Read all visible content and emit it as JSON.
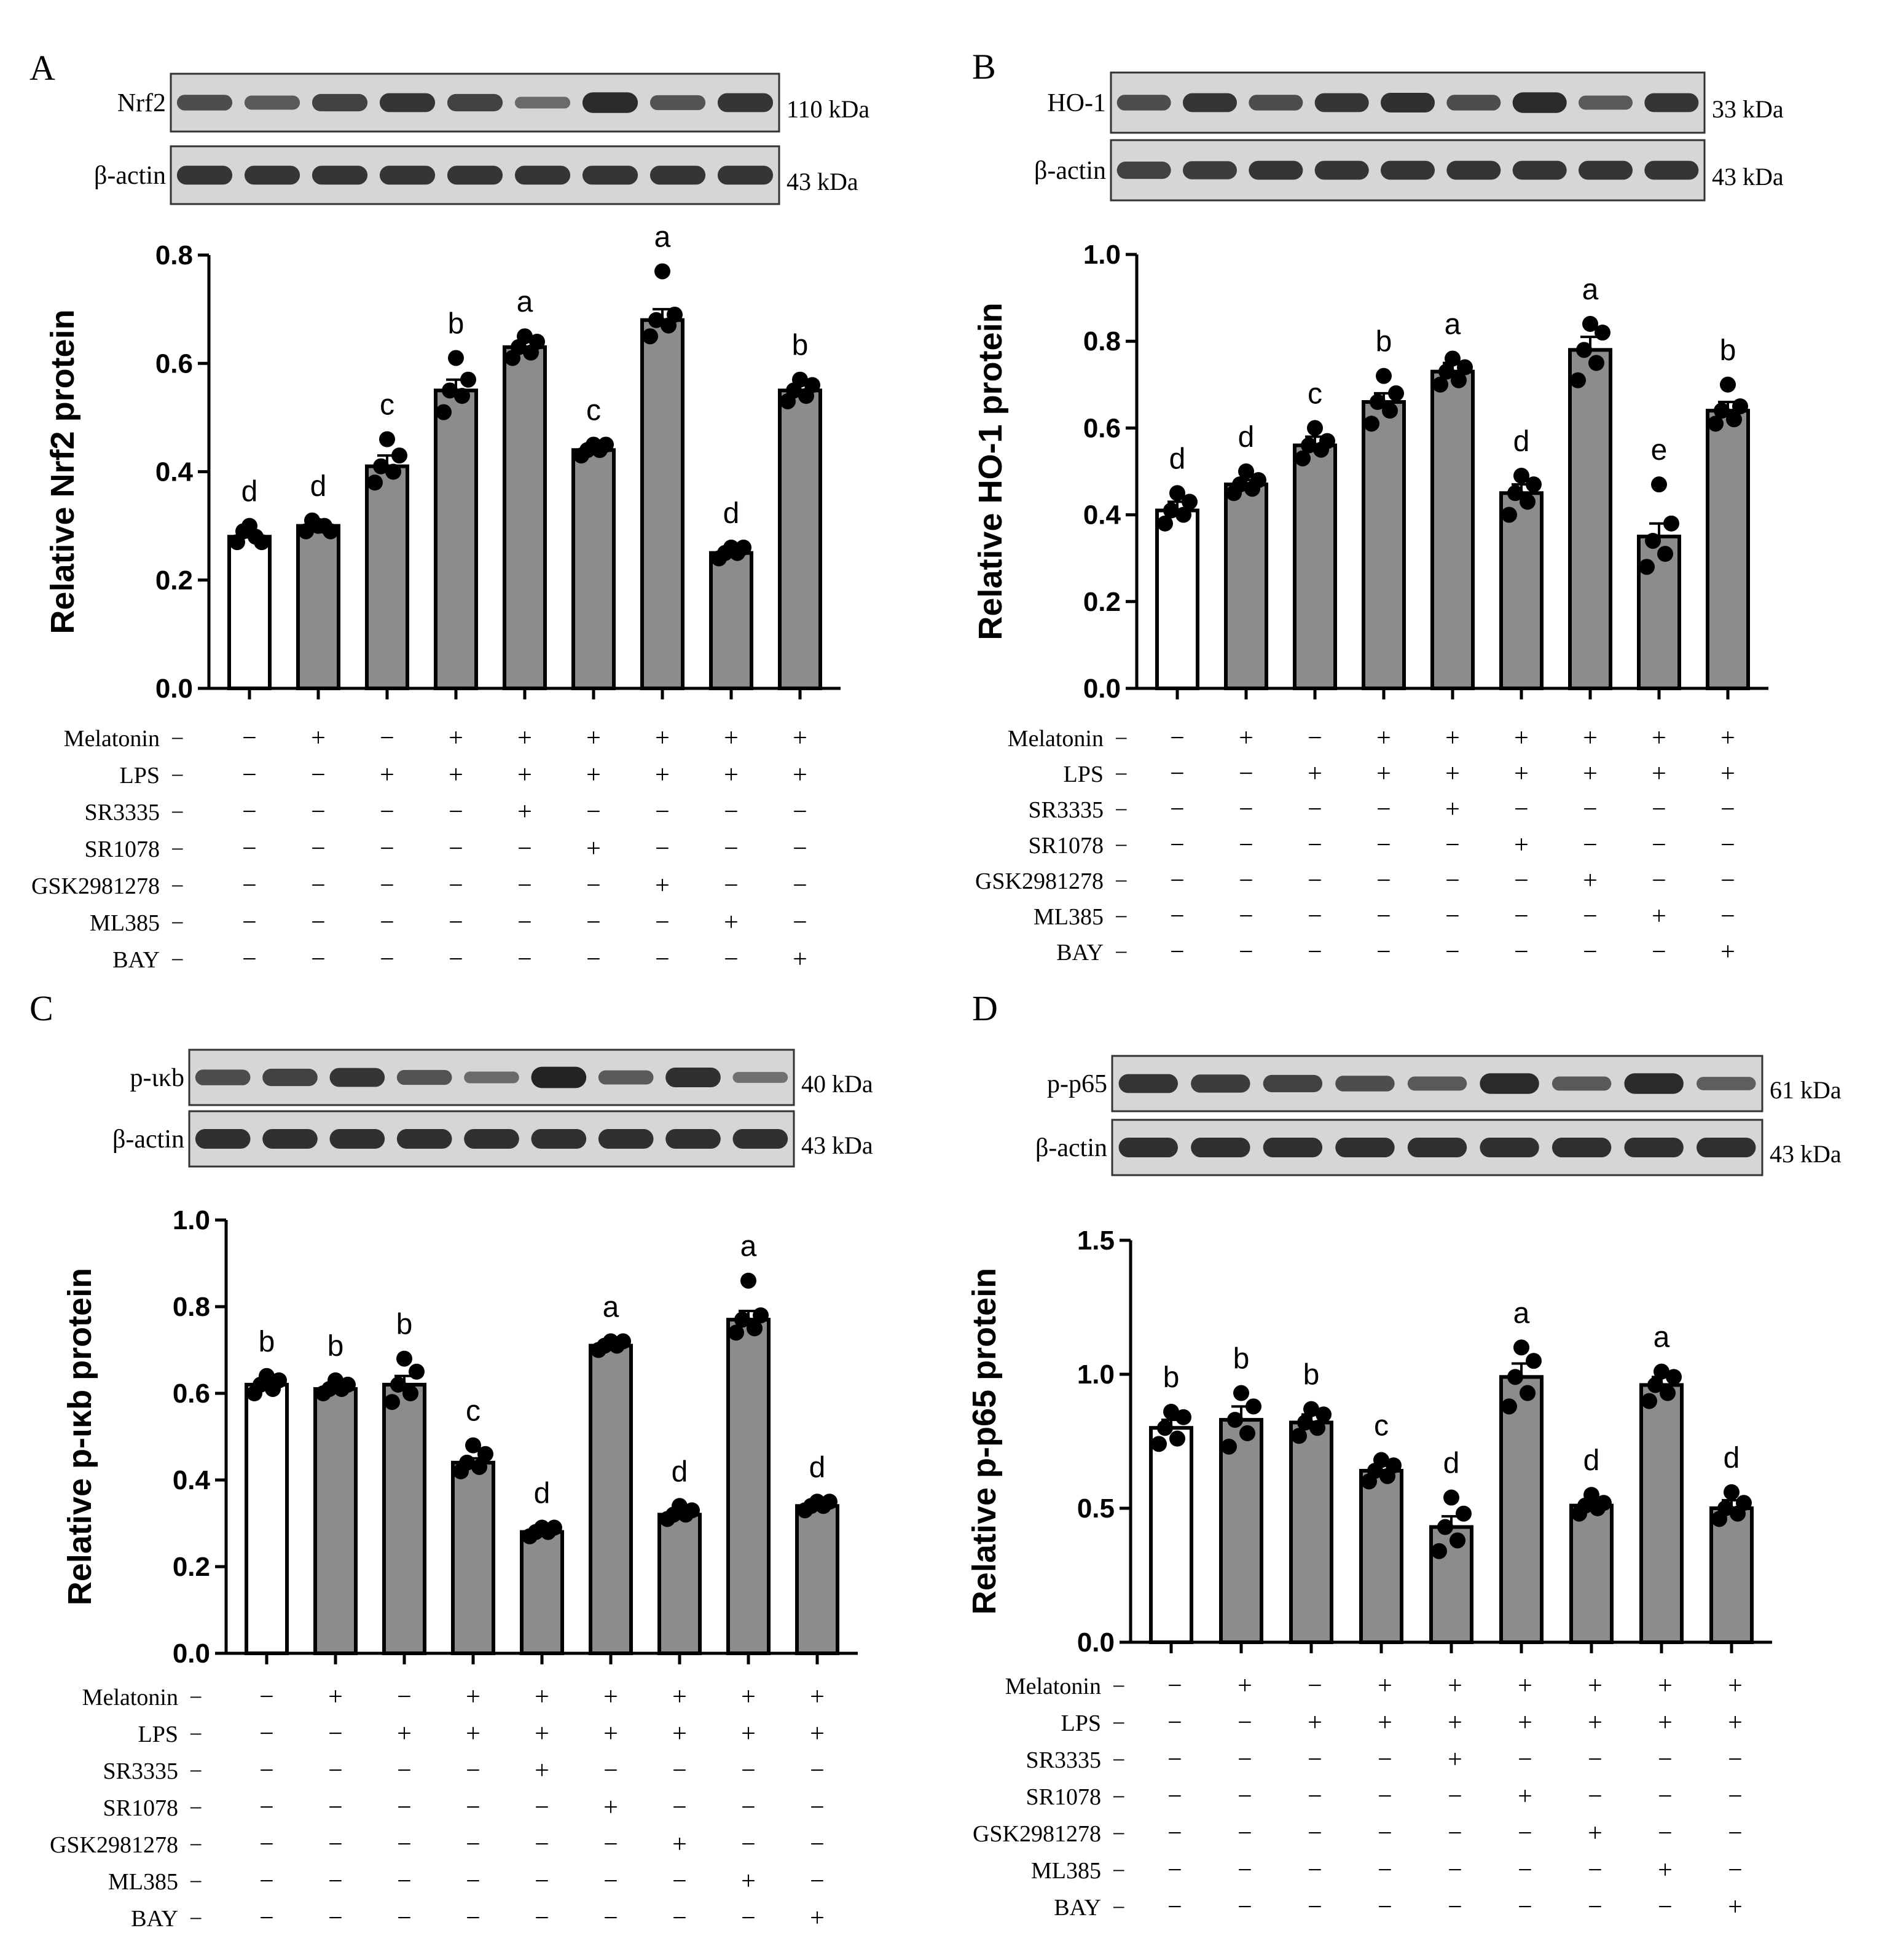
{
  "conditions": [
    "Melatonin",
    "LPS",
    "SR3335",
    "SR1078",
    "GSK2981278",
    "ML385",
    "BAY"
  ],
  "treatment_matrix": [
    [
      "−",
      "+",
      "−",
      "+",
      "+",
      "+",
      "+",
      "+",
      "+"
    ],
    [
      "−",
      "−",
      "+",
      "+",
      "+",
      "+",
      "+",
      "+",
      "+"
    ],
    [
      "−",
      "−",
      "−",
      "−",
      "+",
      "−",
      "−",
      "−",
      "−"
    ],
    [
      "−",
      "−",
      "−",
      "−",
      "−",
      "+",
      "−",
      "−",
      "−"
    ],
    [
      "−",
      "−",
      "−",
      "−",
      "−",
      "−",
      "+",
      "−",
      "−"
    ],
    [
      "−",
      "−",
      "−",
      "−",
      "−",
      "−",
      "−",
      "+",
      "−"
    ],
    [
      "−",
      "−",
      "−",
      "−",
      "−",
      "−",
      "−",
      "−",
      "+"
    ]
  ],
  "colors": {
    "control_bar": "#ffffff",
    "treated_bar": "#8c8c8c",
    "outline": "#000000",
    "blot_bg": "#d6d6d6",
    "band": "#151515"
  },
  "chart_data": [
    {
      "panel": "A",
      "type": "bar",
      "ylabel": "Relative Nrf2 protein",
      "ylim": [
        0,
        0.8
      ],
      "yticks": [
        "0.0",
        "0.2",
        "0.4",
        "0.6",
        "0.8"
      ],
      "values": [
        0.28,
        0.3,
        0.41,
        0.55,
        0.63,
        0.44,
        0.68,
        0.25,
        0.55
      ],
      "errors": [
        0.01,
        0.01,
        0.02,
        0.02,
        0.01,
        0.01,
        0.02,
        0.01,
        0.01
      ],
      "letters": [
        "d",
        "d",
        "c",
        "b",
        "a",
        "c",
        "a",
        "d",
        "b"
      ],
      "points": [
        [
          0.27,
          0.28,
          0.29,
          0.27,
          0.3
        ],
        [
          0.29,
          0.3,
          0.31,
          0.29,
          0.3
        ],
        [
          0.38,
          0.4,
          0.41,
          0.43,
          0.46
        ],
        [
          0.51,
          0.54,
          0.55,
          0.57,
          0.61
        ],
        [
          0.61,
          0.62,
          0.63,
          0.64,
          0.65
        ],
        [
          0.43,
          0.44,
          0.44,
          0.45,
          0.45
        ],
        [
          0.65,
          0.67,
          0.68,
          0.69,
          0.77
        ],
        [
          0.24,
          0.25,
          0.25,
          0.26,
          0.26
        ],
        [
          0.53,
          0.54,
          0.55,
          0.56,
          0.57
        ]
      ],
      "blots": [
        {
          "label": "Nrf2",
          "size": "110 kDa",
          "intensity": [
            0.6,
            0.5,
            0.7,
            0.8,
            0.7,
            0.35,
            0.9,
            0.55,
            0.8
          ]
        },
        {
          "label": "β-actin",
          "size": "43 kDa",
          "intensity": [
            0.8,
            0.8,
            0.8,
            0.8,
            0.8,
            0.8,
            0.8,
            0.8,
            0.8
          ]
        }
      ]
    },
    {
      "panel": "B",
      "type": "bar",
      "ylabel": "Relative HO-1 protein",
      "ylim": [
        0,
        1.0
      ],
      "yticks": [
        "0.0",
        "0.2",
        "0.4",
        "0.6",
        "0.8",
        "1.0"
      ],
      "values": [
        0.41,
        0.47,
        0.56,
        0.66,
        0.73,
        0.45,
        0.78,
        0.35,
        0.64
      ],
      "errors": [
        0.02,
        0.01,
        0.02,
        0.02,
        0.02,
        0.02,
        0.03,
        0.03,
        0.02
      ],
      "letters": [
        "d",
        "d",
        "c",
        "b",
        "a",
        "d",
        "a",
        "e",
        "b"
      ],
      "points": [
        [
          0.38,
          0.4,
          0.41,
          0.43,
          0.45
        ],
        [
          0.45,
          0.46,
          0.47,
          0.48,
          0.5
        ],
        [
          0.53,
          0.55,
          0.56,
          0.57,
          0.6
        ],
        [
          0.61,
          0.64,
          0.66,
          0.68,
          0.72
        ],
        [
          0.7,
          0.71,
          0.73,
          0.74,
          0.76
        ],
        [
          0.4,
          0.43,
          0.45,
          0.47,
          0.49
        ],
        [
          0.71,
          0.75,
          0.78,
          0.82,
          0.84
        ],
        [
          0.28,
          0.31,
          0.34,
          0.38,
          0.47
        ],
        [
          0.61,
          0.62,
          0.64,
          0.65,
          0.7
        ]
      ],
      "blots": [
        {
          "label": "HO-1",
          "size": "33 kDa",
          "intensity": [
            0.6,
            0.8,
            0.6,
            0.8,
            0.85,
            0.6,
            0.9,
            0.5,
            0.8
          ]
        },
        {
          "label": "β-actin",
          "size": "43 kDa",
          "intensity": [
            0.7,
            0.75,
            0.8,
            0.8,
            0.8,
            0.8,
            0.8,
            0.8,
            0.8
          ]
        }
      ]
    },
    {
      "panel": "C",
      "type": "bar",
      "ylabel": "Relative p-ικb protein",
      "ylim": [
        0,
        1.0
      ],
      "yticks": [
        "0.0",
        "0.2",
        "0.4",
        "0.6",
        "0.8",
        "1.0"
      ],
      "values": [
        0.62,
        0.61,
        0.62,
        0.44,
        0.28,
        0.71,
        0.32,
        0.77,
        0.34
      ],
      "errors": [
        0.01,
        0.01,
        0.02,
        0.01,
        0.01,
        0.01,
        0.01,
        0.02,
        0.01
      ],
      "letters": [
        "b",
        "b",
        "b",
        "c",
        "d",
        "a",
        "d",
        "a",
        "d"
      ],
      "points": [
        [
          0.6,
          0.61,
          0.62,
          0.63,
          0.64
        ],
        [
          0.6,
          0.61,
          0.61,
          0.62,
          0.63
        ],
        [
          0.58,
          0.6,
          0.62,
          0.65,
          0.68
        ],
        [
          0.42,
          0.43,
          0.44,
          0.46,
          0.48
        ],
        [
          0.27,
          0.28,
          0.28,
          0.29,
          0.29
        ],
        [
          0.7,
          0.71,
          0.71,
          0.72,
          0.72
        ],
        [
          0.31,
          0.32,
          0.32,
          0.33,
          0.34
        ],
        [
          0.74,
          0.75,
          0.77,
          0.78,
          0.86
        ],
        [
          0.33,
          0.34,
          0.34,
          0.35,
          0.35
        ]
      ],
      "blots": [
        {
          "label": "p-ικb",
          "size": "40 kDa",
          "intensity": [
            0.6,
            0.7,
            0.8,
            0.55,
            0.35,
            0.95,
            0.5,
            0.85,
            0.3
          ]
        },
        {
          "label": "β-actin",
          "size": "43 kDa",
          "intensity": [
            0.85,
            0.85,
            0.85,
            0.85,
            0.85,
            0.85,
            0.85,
            0.85,
            0.85
          ]
        }
      ]
    },
    {
      "panel": "D",
      "type": "bar",
      "ylabel": "Relative p-p65 protein",
      "ylim": [
        0,
        1.5
      ],
      "yticks": [
        "0.0",
        "0.5",
        "1.0",
        "1.5"
      ],
      "values": [
        0.8,
        0.83,
        0.82,
        0.64,
        0.43,
        0.99,
        0.51,
        0.96,
        0.5
      ],
      "errors": [
        0.03,
        0.05,
        0.03,
        0.02,
        0.04,
        0.05,
        0.02,
        0.03,
        0.03
      ],
      "letters": [
        "b",
        "b",
        "b",
        "c",
        "d",
        "a",
        "d",
        "a",
        "d"
      ],
      "points": [
        [
          0.74,
          0.76,
          0.8,
          0.84,
          0.86
        ],
        [
          0.73,
          0.78,
          0.83,
          0.88,
          0.93
        ],
        [
          0.77,
          0.8,
          0.82,
          0.85,
          0.87
        ],
        [
          0.6,
          0.62,
          0.64,
          0.66,
          0.68
        ],
        [
          0.34,
          0.38,
          0.43,
          0.48,
          0.54
        ],
        [
          0.88,
          0.93,
          0.99,
          1.05,
          1.1
        ],
        [
          0.48,
          0.5,
          0.51,
          0.52,
          0.55
        ],
        [
          0.9,
          0.93,
          0.96,
          0.99,
          1.01
        ],
        [
          0.46,
          0.48,
          0.5,
          0.52,
          0.56
        ]
      ],
      "blots": [
        {
          "label": "p-p65",
          "size": "61 kDa",
          "intensity": [
            0.8,
            0.75,
            0.7,
            0.6,
            0.5,
            0.9,
            0.5,
            0.9,
            0.45
          ]
        },
        {
          "label": "β-actin",
          "size": "43 kDa",
          "intensity": [
            0.85,
            0.85,
            0.85,
            0.85,
            0.85,
            0.85,
            0.85,
            0.85,
            0.85
          ]
        }
      ]
    }
  ]
}
